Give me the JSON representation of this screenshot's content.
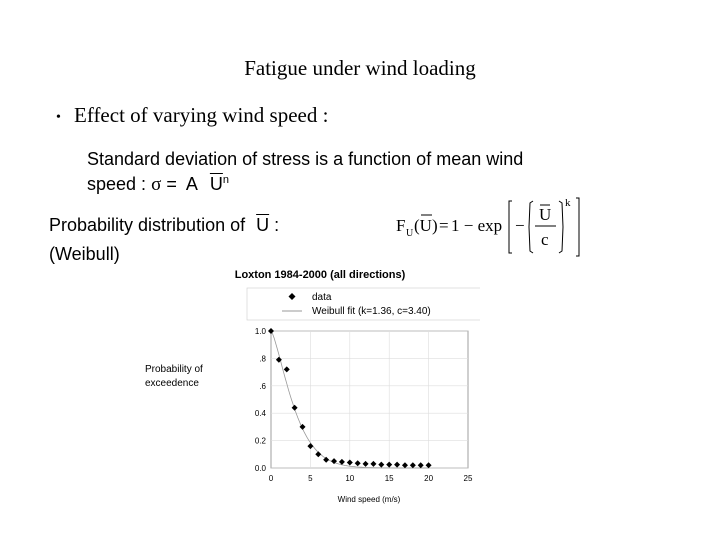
{
  "slide": {
    "title": "Fatigue under wind loading",
    "bullet": "Effect of varying wind speed :",
    "sub_line1": "Standard deviation of stress is a function of mean wind",
    "sub_line2_prefix": "speed :",
    "sigma": "σ",
    "equals": "=",
    "A": "A",
    "U": "U",
    "n": "n",
    "prob_line1_prefix": "Probability distribution of",
    "prob_line1_suffix": ":",
    "prob_line2": "(Weibull)"
  },
  "formula": {
    "F": "F",
    "sub_U": "U",
    "arg": "(U)",
    "eq": "=",
    "rhs": "1 − exp",
    "minus": "−",
    "num": "U",
    "den": "c",
    "exp": "k"
  },
  "chart_data": {
    "type": "scatter",
    "title": "Loxton 1984-2000 (all directions)",
    "xlabel": "Wind speed (m/s)",
    "ylabel": "Probability of exceedence",
    "xlim": [
      0,
      25
    ],
    "ylim": [
      0,
      1
    ],
    "xticks": [
      "0",
      "5",
      "10",
      "15",
      "20",
      "25"
    ],
    "yticks": [
      "0.0",
      "0.2",
      "0.4",
      ".6",
      ".8",
      "1.0"
    ],
    "grid": true,
    "legend_position": "top",
    "series": [
      {
        "name": "data",
        "marker": "diamond",
        "color": "#000000",
        "x": [
          0,
          1,
          2,
          3,
          4,
          5,
          6,
          7,
          8,
          9,
          10,
          11,
          12,
          13,
          14,
          15,
          16,
          17,
          18,
          19,
          20
        ],
        "y": [
          1.0,
          0.79,
          0.72,
          0.44,
          0.3,
          0.16,
          0.1,
          0.06,
          0.05,
          0.045,
          0.04,
          0.035,
          0.03,
          0.03,
          0.025,
          0.025,
          0.025,
          0.02,
          0.02,
          0.02,
          0.02
        ]
      },
      {
        "name": "Weibull fit (k=1.36, c=3.40)",
        "color": "#999999",
        "k": 1.36,
        "c": 3.4
      }
    ]
  }
}
